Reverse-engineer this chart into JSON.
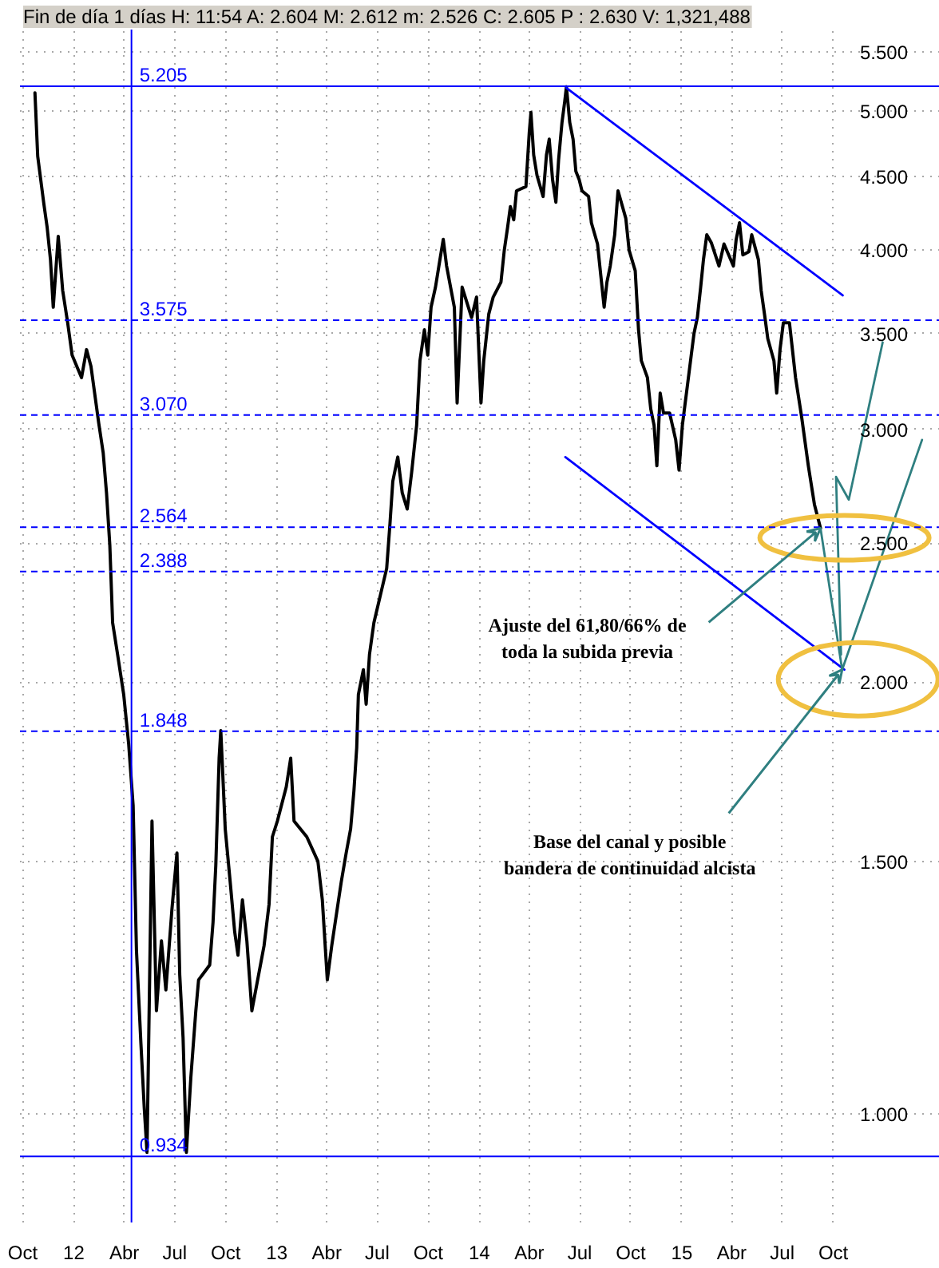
{
  "chart_data": {
    "type": "line",
    "title": "Fin de día 1 días H: 11:54 A: 2.604 M: 2.612 m: 2.526 C: 2.605 P : 2.630 V: 1,321,488",
    "series": [
      {
        "color": "#000000",
        "x": [
          "2011-10-23",
          "2011-10-28",
          "2011-11-08",
          "2011-11-14",
          "2011-11-20",
          "2011-11-25",
          "2011-12-04",
          "2011-12-12",
          "2011-12-21",
          "2011-12-29",
          "2012-01-15",
          "2012-01-24",
          "2012-02-01",
          "2012-02-15",
          "2012-02-23",
          "2012-02-29",
          "2012-03-06",
          "2012-03-11",
          "2012-03-20",
          "2012-03-31",
          "2012-04-09",
          "2012-04-17",
          "2012-04-23",
          "2012-05-01",
          "2012-05-07",
          "2012-05-12",
          "2012-05-21",
          "2012-05-29",
          "2012-06-07",
          "2012-06-15",
          "2012-06-26",
          "2012-07-05",
          "2012-07-10",
          "2012-07-16",
          "2012-07-22",
          "2012-07-30",
          "2012-08-08",
          "2012-08-13",
          "2012-09-02",
          "2012-09-08",
          "2012-09-13",
          "2012-09-19",
          "2012-09-22",
          "2012-09-30",
          "2012-10-09",
          "2012-10-17",
          "2012-10-23",
          "2012-10-31",
          "2012-11-08",
          "2012-11-17",
          "2012-12-09",
          "2012-12-18",
          "2012-12-24",
          "2013-01-02",
          "2013-01-18",
          "2013-01-26",
          "2013-02-01",
          "2013-02-24",
          "2013-03-16",
          "2013-03-24",
          "2013-04-02",
          "2013-04-10",
          "2013-04-27",
          "2013-05-06",
          "2013-05-14",
          "2013-05-20",
          "2013-05-25",
          "2013-05-28",
          "2013-06-06",
          "2013-06-11",
          "2013-06-17",
          "2013-06-25",
          "2013-07-18",
          "2013-07-24",
          "2013-07-29",
          "2013-08-07",
          "2013-08-15",
          "2013-08-24",
          "2013-09-01",
          "2013-09-10",
          "2013-09-16",
          "2013-09-24",
          "2013-09-30",
          "2013-10-06",
          "2013-10-14",
          "2013-10-22",
          "2013-10-28",
          "2013-11-03",
          "2013-11-17",
          "2013-11-22",
          "2013-12-01",
          "2013-12-18",
          "2013-12-27",
          "2014-01-04",
          "2014-01-09",
          "2014-01-18",
          "2014-01-26",
          "2014-02-09",
          "2014-02-15",
          "2014-02-21",
          "2014-02-26",
          "2014-03-04",
          "2014-03-09",
          "2014-03-26",
          "2014-04-01",
          "2014-04-04",
          "2014-04-09",
          "2014-04-15",
          "2014-04-26",
          "2014-05-02",
          "2014-05-07",
          "2014-05-13",
          "2014-05-19",
          "2014-05-24",
          "2014-05-30",
          "2014-06-04",
          "2014-06-07",
          "2014-06-13",
          "2014-06-19",
          "2014-06-24",
          "2014-06-30",
          "2014-07-05",
          "2014-07-17",
          "2014-07-22",
          "2014-08-02",
          "2014-08-08",
          "2014-08-14",
          "2014-08-19",
          "2014-08-25",
          "2014-09-02",
          "2014-09-08",
          "2014-09-22",
          "2014-09-28",
          "2014-10-09",
          "2014-10-15",
          "2014-10-20",
          "2014-10-31",
          "2014-11-06",
          "2014-11-12",
          "2014-11-17",
          "2014-11-23",
          "2014-11-29",
          "2014-12-10",
          "2014-12-21",
          "2014-12-27",
          "2015-01-02",
          "2015-01-12",
          "2015-01-18",
          "2015-01-23",
          "2015-01-29",
          "2015-02-04",
          "2015-02-09",
          "2015-02-15",
          "2015-02-23",
          "2015-03-09",
          "2015-03-18",
          "2015-04-04",
          "2015-04-09",
          "2015-04-15",
          "2015-04-21",
          "2015-05-02",
          "2015-05-07",
          "2015-05-19",
          "2015-05-24",
          "2015-05-30",
          "2015-06-05",
          "2015-06-16",
          "2015-06-21",
          "2015-06-27",
          "2015-07-03",
          "2015-07-14",
          "2015-07-25",
          "2015-08-05",
          "2015-08-17",
          "2015-08-28",
          "2015-09-08"
        ],
        "values": [
          5.15,
          4.65,
          4.31,
          4.15,
          3.94,
          3.65,
          4.09,
          3.75,
          3.56,
          3.38,
          3.26,
          3.41,
          3.32,
          3.03,
          2.89,
          2.71,
          2.49,
          2.2,
          2.09,
          1.96,
          1.81,
          1.64,
          1.3,
          1.12,
          1.01,
          0.94,
          1.6,
          1.18,
          1.32,
          1.22,
          1.39,
          1.52,
          1.25,
          1.13,
          0.94,
          1.06,
          1.18,
          1.24,
          1.27,
          1.36,
          1.49,
          1.77,
          1.85,
          1.58,
          1.45,
          1.34,
          1.29,
          1.41,
          1.32,
          1.18,
          1.31,
          1.4,
          1.56,
          1.6,
          1.69,
          1.77,
          1.6,
          1.56,
          1.5,
          1.41,
          1.24,
          1.31,
          1.45,
          1.52,
          1.58,
          1.68,
          1.8,
          1.96,
          2.04,
          1.93,
          2.09,
          2.2,
          2.4,
          2.58,
          2.76,
          2.87,
          2.71,
          2.64,
          2.8,
          3.02,
          3.35,
          3.52,
          3.38,
          3.65,
          3.77,
          3.94,
          4.07,
          3.9,
          3.65,
          3.13,
          3.77,
          3.59,
          3.71,
          3.13,
          3.35,
          3.61,
          3.71,
          3.8,
          4.0,
          4.15,
          4.29,
          4.2,
          4.4,
          4.43,
          4.83,
          4.99,
          4.66,
          4.51,
          4.36,
          4.66,
          4.78,
          4.48,
          4.32,
          4.63,
          4.91,
          5.08,
          5.2,
          4.91,
          4.78,
          4.54,
          4.48,
          4.4,
          4.36,
          4.18,
          4.04,
          3.84,
          3.65,
          3.8,
          3.9,
          4.1,
          4.4,
          4.21,
          4.0,
          3.87,
          3.52,
          3.35,
          3.26,
          3.1,
          3.02,
          2.83,
          3.18,
          3.08,
          3.08,
          2.95,
          2.81,
          3.02,
          3.24,
          3.38,
          3.5,
          3.59,
          3.77,
          3.94,
          4.1,
          4.05,
          3.9,
          4.04,
          3.9,
          4.07,
          4.18,
          3.97,
          3.99,
          4.1,
          3.94,
          3.75,
          3.61,
          3.47,
          3.35,
          3.18,
          3.41,
          3.56,
          3.56,
          3.26,
          3.06,
          2.83,
          2.66,
          2.56
        ]
      },
      {
        "color": "#0000ff",
        "x": [
          "2014-06-07",
          "2015-10-18"
        ],
        "values": [
          5.19,
          3.72
        ]
      },
      {
        "color": "#0000ff",
        "x": [
          "2014-06-05",
          "2015-10-21"
        ],
        "values": [
          2.87,
          2.04
        ]
      },
      {
        "color": "#2f7f80",
        "x": [
          "2015-09-08",
          "2015-10-17",
          "2016-03-09"
        ],
        "values": [
          2.56,
          2.04,
          2.95
        ]
      },
      {
        "color": "#2f7f80",
        "x": [
          "2015-10-15",
          "2015-10-06",
          "2015-10-29",
          "2015-12-29"
        ],
        "values": [
          2.09,
          2.78,
          2.68,
          3.45
        ]
      }
    ],
    "xlim": [
      "2011-09-26",
      "2016-04-10"
    ],
    "xticks": [
      {
        "value": "2011-10-01",
        "label": "Oct"
      },
      {
        "value": "2012-01-01",
        "label": "12"
      },
      {
        "value": "2012-04-01",
        "label": "Abr"
      },
      {
        "value": "2012-07-01",
        "label": "Jul"
      },
      {
        "value": "2012-10-01",
        "label": "Oct"
      },
      {
        "value": "2013-01-01",
        "label": "13"
      },
      {
        "value": "2013-04-01",
        "label": "Abr"
      },
      {
        "value": "2013-07-01",
        "label": "Jul"
      },
      {
        "value": "2013-10-01",
        "label": "Oct"
      },
      {
        "value": "2014-01-01",
        "label": "14"
      },
      {
        "value": "2014-04-01",
        "label": "Abr"
      },
      {
        "value": "2014-07-01",
        "label": "Jul"
      },
      {
        "value": "2014-10-01",
        "label": "Oct"
      },
      {
        "value": "2015-01-01",
        "label": "15"
      },
      {
        "value": "2015-04-01",
        "label": "Abr"
      },
      {
        "value": "2015-07-01",
        "label": "Jul"
      },
      {
        "value": "2015-10-01",
        "label": "Oct"
      }
    ],
    "ylim": [
      0.84,
      5.7
    ],
    "yticks": [
      {
        "value": 1,
        "label": "1.000"
      },
      {
        "value": 1.5,
        "label": "1.500"
      },
      {
        "value": 2,
        "label": "2.000"
      },
      {
        "value": 2.5,
        "label": "2.500"
      },
      {
        "value": 3,
        "label": "3.000"
      },
      {
        "value": 3.5,
        "label": "3.500"
      },
      {
        "value": 4,
        "label": "4.000"
      },
      {
        "value": 4.5,
        "label": "4.500"
      },
      {
        "value": 5,
        "label": "5.000"
      },
      {
        "value": 5.5,
        "label": "5.500"
      }
    ],
    "log": "y",
    "grid": true,
    "ref_lines": [
      {
        "axis": "y",
        "value": 5.205,
        "label": "5.205",
        "color": "#0000ff",
        "line_style": "solid"
      },
      {
        "axis": "y",
        "value": 3.575,
        "label": "3.575",
        "color": "#0000ff",
        "line_style": "dashed"
      },
      {
        "axis": "y",
        "value": 3.07,
        "label": "3.070",
        "color": "#0000ff",
        "line_style": "dashed"
      },
      {
        "axis": "y",
        "value": 2.564,
        "label": "2.564",
        "color": "#0000ff",
        "line_style": "dashed"
      },
      {
        "axis": "y",
        "value": 2.388,
        "label": "2.388",
        "color": "#0000ff",
        "line_style": "dashed"
      },
      {
        "axis": "y",
        "value": 1.848,
        "label": "1.848",
        "color": "#0000ff",
        "line_style": "dashed"
      },
      {
        "axis": "y",
        "value": 0.934,
        "label": "0.934",
        "color": "#0000ff",
        "line_style": "solid"
      },
      {
        "axis": "x",
        "value": "2012-04-14",
        "color": "#0000ff",
        "line_style": "solid"
      }
    ],
    "annotations": [
      {
        "text": "Ajuste del 61,80/66% de\ntoda la subida previa",
        "x": "2015-09-08",
        "y": 2.56
      },
      {
        "text": "Base del canal y posible\nbandera de continuidad alcista",
        "x": "2015-10-17",
        "y": 2.04
      }
    ]
  }
}
